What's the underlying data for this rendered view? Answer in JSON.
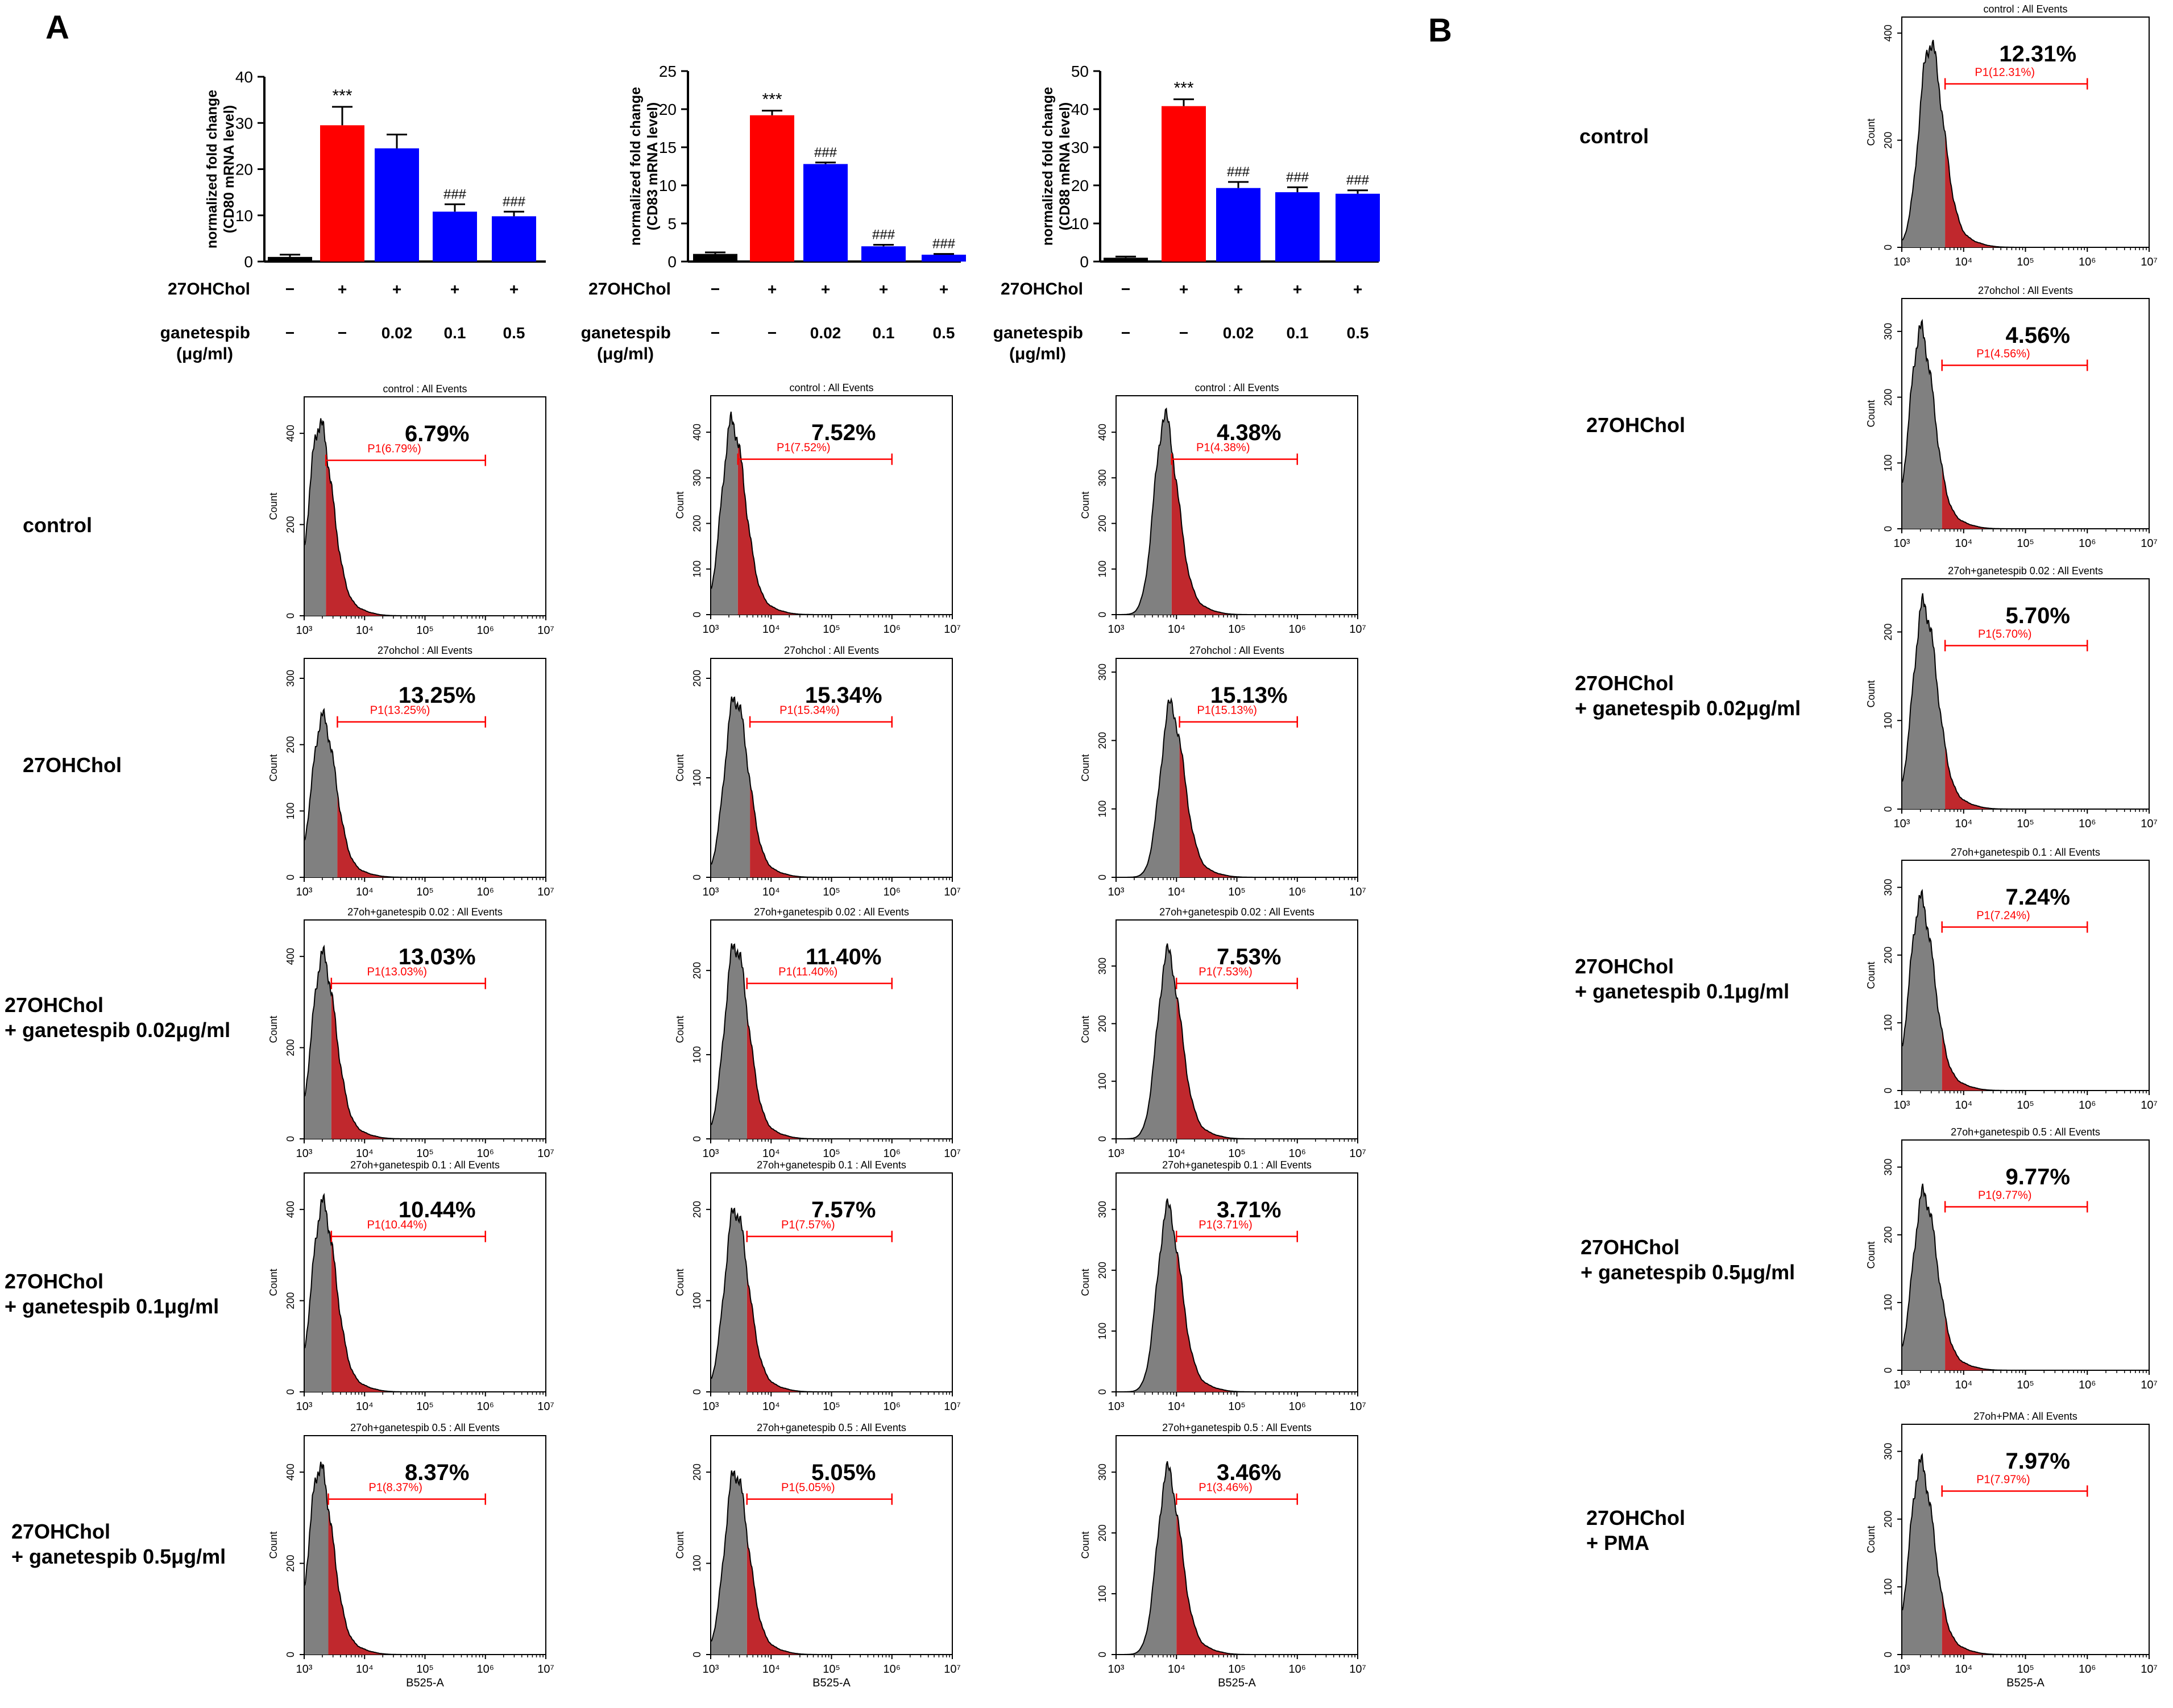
{
  "panel_letters": [
    "A",
    "B"
  ],
  "chart_data": [
    {
      "type": "bar",
      "id": "bar-cd80",
      "ylabel": "normalized fold change\n(CD80 mRNA level)",
      "ylim": [
        0,
        40
      ],
      "yticks": [
        0,
        10,
        20,
        30,
        40
      ],
      "values": [
        1,
        29.5,
        24.5,
        10.8,
        9.8
      ],
      "errors": [
        0.5,
        4,
        3,
        1.6,
        1
      ],
      "colors": [
        "#000000",
        "#ff0000",
        "#0000ff",
        "#0000ff",
        "#0000ff"
      ],
      "annotations": [
        "",
        "***",
        "",
        "###",
        "###"
      ],
      "row1_label": "27OHChol",
      "row1_values": [
        "−",
        "+",
        "+",
        "+",
        "+"
      ],
      "row2_label": "ganetespib",
      "row2_sublabel": "(μg/ml)",
      "row2_values": [
        "−",
        "−",
        "0.02",
        "0.1",
        "0.5"
      ]
    },
    {
      "type": "bar",
      "id": "bar-cd83",
      "ylabel": "normalized fold change\n(CD83 mRNA level)",
      "ylim": [
        0,
        25
      ],
      "yticks": [
        0,
        5,
        10,
        15,
        20,
        25
      ],
      "values": [
        1,
        19.2,
        12.8,
        2,
        0.9
      ],
      "errors": [
        0.2,
        0.6,
        0.2,
        0.2,
        0.1
      ],
      "colors": [
        "#000000",
        "#ff0000",
        "#0000ff",
        "#0000ff",
        "#0000ff"
      ],
      "annotations": [
        "",
        "***",
        "###",
        "###",
        "###"
      ],
      "row1_label": "27OHChol",
      "row1_values": [
        "−",
        "+",
        "+",
        "+",
        "+"
      ],
      "row2_label": "ganetespib",
      "row2_sublabel": "(μg/ml)",
      "row2_values": [
        "−",
        "−",
        "0.02",
        "0.1",
        "0.5"
      ]
    },
    {
      "type": "bar",
      "id": "bar-cd88",
      "ylabel": "normalized fold change\n(CD88 mRNA level)",
      "ylim": [
        0,
        50
      ],
      "yticks": [
        0,
        10,
        20,
        30,
        40,
        50
      ],
      "values": [
        1,
        40.8,
        19.3,
        18.2,
        17.8
      ],
      "errors": [
        0.3,
        1.8,
        1.6,
        1.3,
        0.9
      ],
      "colors": [
        "#000000",
        "#ff0000",
        "#0000ff",
        "#0000ff",
        "#0000ff"
      ],
      "annotations": [
        "",
        "***",
        "###",
        "###",
        "###"
      ],
      "row1_label": "27OHChol",
      "row1_values": [
        "−",
        "+",
        "+",
        "+",
        "+"
      ],
      "row2_label": "ganetespib",
      "row2_sublabel": "(μg/ml)",
      "row2_values": [
        "−",
        "−",
        "0.02",
        "0.1",
        "0.5"
      ]
    },
    {
      "type": "histogram",
      "id": "hist-a-c1-r1",
      "title": "control : All Events",
      "percent": "6.79%",
      "gate_label": "P1(6.79%)",
      "ylim": [
        0,
        480
      ],
      "yticks": [
        0,
        200,
        400
      ],
      "peak_log10": 3.25,
      "peak_count": 420,
      "gate_log10": 3.36,
      "gate_end_log10": 6,
      "ylabel": "Count",
      "xticks": [
        "10³",
        "10⁴",
        "10⁵",
        "10⁶",
        "10⁷"
      ]
    },
    {
      "type": "histogram",
      "id": "hist-a-c2-r1",
      "title": "control : All Events",
      "percent": "7.52%",
      "gate_label": "P1(7.52%)",
      "ylim": [
        0,
        480
      ],
      "yticks": [
        0,
        100,
        200,
        300,
        400
      ],
      "peak_log10": 3.35,
      "peak_count": 420,
      "gate_log10": 3.45,
      "gate_end_log10": 6,
      "ylabel": "Count",
      "xticks": [
        "10³",
        "10⁴",
        "10⁵",
        "10⁶",
        "10⁷"
      ]
    },
    {
      "type": "histogram",
      "id": "hist-a-c3-r1",
      "title": "control : All Events",
      "percent": "4.38%",
      "gate_label": "P1(4.38%)",
      "ylim": [
        0,
        480
      ],
      "yticks": [
        0,
        100,
        200,
        300,
        400
      ],
      "peak_log10": 3.8,
      "peak_count": 430,
      "gate_log10": 3.92,
      "gate_end_log10": 6,
      "ylabel": "Count",
      "xticks": [
        "10³",
        "10⁴",
        "10⁵",
        "10⁶",
        "10⁷"
      ]
    },
    {
      "type": "histogram",
      "id": "hist-a-c1-r2",
      "title": "27ohchol : All Events",
      "percent": "13.25%",
      "gate_label": "P1(13.25%)",
      "ylim": [
        0,
        330
      ],
      "yticks": [
        0,
        100,
        200,
        300
      ],
      "peak_log10": 3.3,
      "peak_count": 240,
      "gate_log10": 3.55,
      "gate_end_log10": 6,
      "ylabel": "Count",
      "xticks": [
        "10³",
        "10⁴",
        "10⁵",
        "10⁶",
        "10⁷"
      ]
    },
    {
      "type": "histogram",
      "id": "hist-a-c2-r2",
      "title": "27ohchol : All Events",
      "percent": "15.34%",
      "gate_label": "P1(15.34%)",
      "ylim": [
        0,
        220
      ],
      "yticks": [
        0,
        100,
        200
      ],
      "peak_log10": 3.4,
      "peak_count": 180,
      "gate_log10": 3.65,
      "gate_end_log10": 6,
      "ylabel": "Count",
      "xticks": [
        "10³",
        "10⁴",
        "10⁵",
        "10⁶",
        "10⁷"
      ]
    },
    {
      "type": "histogram",
      "id": "hist-a-c3-r2",
      "title": "27ohchol : All Events",
      "percent": "15.13%",
      "gate_label": "P1(15.13%)",
      "ylim": [
        0,
        320
      ],
      "yticks": [
        0,
        100,
        200,
        300
      ],
      "peak_log10": 3.9,
      "peak_count": 250,
      "gate_log10": 4.05,
      "gate_end_log10": 6,
      "ylabel": "Count",
      "xticks": [
        "10³",
        "10⁴",
        "10⁵",
        "10⁶",
        "10⁷"
      ]
    },
    {
      "type": "histogram",
      "id": "hist-a-c1-r3",
      "title": "27oh+ganetespib 0.02 : All Events",
      "percent": "13.03%",
      "gate_label": "P1(13.03%)",
      "ylim": [
        0,
        480
      ],
      "yticks": [
        0,
        200,
        400
      ],
      "peak_log10": 3.3,
      "peak_count": 400,
      "gate_log10": 3.45,
      "gate_end_log10": 6,
      "ylabel": "Count",
      "xticks": [
        "10³",
        "10⁴",
        "10⁵",
        "10⁶",
        "10⁷"
      ]
    },
    {
      "type": "histogram",
      "id": "hist-a-c2-r3",
      "title": "27oh+ganetespib 0.02 : All Events",
      "percent": "11.40%",
      "gate_label": "P1(11.40%)",
      "ylim": [
        0,
        260
      ],
      "yticks": [
        0,
        100,
        200
      ],
      "peak_log10": 3.4,
      "peak_count": 230,
      "gate_log10": 3.6,
      "gate_end_log10": 6,
      "ylabel": "Count",
      "xticks": [
        "10³",
        "10⁴",
        "10⁵",
        "10⁶",
        "10⁷"
      ]
    },
    {
      "type": "histogram",
      "id": "hist-a-c3-r3",
      "title": "27oh+ganetespib 0.02 : All Events",
      "percent": "7.53%",
      "gate_label": "P1(7.53%)",
      "ylim": [
        0,
        380
      ],
      "yticks": [
        0,
        100,
        200,
        300
      ],
      "peak_log10": 3.85,
      "peak_count": 320,
      "gate_log10": 4,
      "gate_end_log10": 6,
      "ylabel": "Count",
      "xticks": [
        "10³",
        "10⁴",
        "10⁵",
        "10⁶",
        "10⁷"
      ]
    },
    {
      "type": "histogram",
      "id": "hist-a-c1-r4",
      "title": "27oh+ganetespib 0.1 : All Events",
      "percent": "10.44%",
      "gate_label": "P1(10.44%)",
      "ylim": [
        0,
        480
      ],
      "yticks": [
        0,
        200,
        400
      ],
      "peak_log10": 3.3,
      "peak_count": 410,
      "gate_log10": 3.45,
      "gate_end_log10": 6,
      "ylabel": "Count",
      "xticks": [
        "10³",
        "10⁴",
        "10⁵",
        "10⁶",
        "10⁷"
      ]
    },
    {
      "type": "histogram",
      "id": "hist-a-c2-r4",
      "title": "27oh+ganetespib 0.1 : All Events",
      "percent": "7.57%",
      "gate_label": "P1(7.57%)",
      "ylim": [
        0,
        240
      ],
      "yticks": [
        0,
        100,
        200
      ],
      "peak_log10": 3.4,
      "peak_count": 200,
      "gate_log10": 3.6,
      "gate_end_log10": 6,
      "ylabel": "Count",
      "xticks": [
        "10³",
        "10⁴",
        "10⁵",
        "10⁶",
        "10⁷"
      ]
    },
    {
      "type": "histogram",
      "id": "hist-a-c3-r4",
      "title": "27oh+ganetespib 0.1 : All Events",
      "percent": "3.71%",
      "gate_label": "P1(3.71%)",
      "ylim": [
        0,
        360
      ],
      "yticks": [
        0,
        100,
        200,
        300
      ],
      "peak_log10": 3.85,
      "peak_count": 300,
      "gate_log10": 4,
      "gate_end_log10": 6,
      "ylabel": "Count",
      "xticks": [
        "10³",
        "10⁴",
        "10⁵",
        "10⁶",
        "10⁷"
      ]
    },
    {
      "type": "histogram",
      "id": "hist-a-c1-r5",
      "title": "27oh+ganetespib 0.5 : All Events",
      "percent": "8.37%",
      "gate_label": "P1(8.37%)",
      "ylim": [
        0,
        480
      ],
      "yticks": [
        0,
        200,
        400
      ],
      "peak_log10": 3.25,
      "peak_count": 410,
      "gate_log10": 3.4,
      "gate_end_log10": 6,
      "ylabel": "Count",
      "xticks": [
        "10³",
        "10⁴",
        "10⁵",
        "10⁶",
        "10⁷"
      ],
      "xlabel": "B525-A"
    },
    {
      "type": "histogram",
      "id": "hist-a-c2-r5",
      "title": "27oh+ganetespib 0.5 : All Events",
      "percent": "5.05%",
      "gate_label": "P1(5.05%)",
      "ylim": [
        0,
        240
      ],
      "yticks": [
        0,
        100,
        200
      ],
      "peak_log10": 3.4,
      "peak_count": 200,
      "gate_log10": 3.6,
      "gate_end_log10": 6,
      "ylabel": "Count",
      "xticks": [
        "10³",
        "10⁴",
        "10⁵",
        "10⁶",
        "10⁷"
      ],
      "xlabel": "B525-A"
    },
    {
      "type": "histogram",
      "id": "hist-a-c3-r5",
      "title": "27oh+ganetespib 0.5 : All Events",
      "percent": "3.46%",
      "gate_label": "P1(3.46%)",
      "ylim": [
        0,
        360
      ],
      "yticks": [
        0,
        100,
        200,
        300
      ],
      "peak_log10": 3.85,
      "peak_count": 300,
      "gate_log10": 4,
      "gate_end_log10": 6,
      "ylabel": "Count",
      "xticks": [
        "10³",
        "10⁴",
        "10⁵",
        "10⁶",
        "10⁷"
      ],
      "xlabel": "B525-A"
    },
    {
      "type": "histogram",
      "id": "hist-b-r1",
      "title": "control : All Events",
      "percent": "12.31%",
      "gate_label": "P1(12.31%)",
      "ylim": [
        0,
        430
      ],
      "yticks": [
        0,
        200,
        400
      ],
      "peak_log10": 3.45,
      "peak_count": 380,
      "gate_log10": 3.7,
      "gate_end_log10": 6,
      "ylabel": "Count",
      "xticks": [
        "10³",
        "10⁴",
        "10⁵",
        "10⁶",
        "10⁷"
      ]
    },
    {
      "type": "histogram",
      "id": "hist-b-r2",
      "title": "27ohchol : All Events",
      "percent": "4.56%",
      "gate_label": "P1(4.56%)",
      "ylim": [
        0,
        350
      ],
      "yticks": [
        0,
        100,
        200,
        300
      ],
      "peak_log10": 3.3,
      "peak_count": 300,
      "gate_log10": 3.65,
      "gate_end_log10": 6,
      "ylabel": "Count",
      "xticks": [
        "10³",
        "10⁴",
        "10⁵",
        "10⁶",
        "10⁷"
      ]
    },
    {
      "type": "histogram",
      "id": "hist-b-r3",
      "title": "27oh+ganetespib 0.02 : All Events",
      "percent": "5.70%",
      "gate_label": "P1(5.70%)",
      "ylim": [
        0,
        260
      ],
      "yticks": [
        0,
        100,
        200
      ],
      "peak_log10": 3.35,
      "peak_count": 230,
      "gate_log10": 3.7,
      "gate_end_log10": 6,
      "ylabel": "Count",
      "xticks": [
        "10³",
        "10⁴",
        "10⁵",
        "10⁶",
        "10⁷"
      ]
    },
    {
      "type": "histogram",
      "id": "hist-b-r4",
      "title": "27oh+ganetespib 0.1 : All Events",
      "percent": "7.24%",
      "gate_label": "P1(7.24%)",
      "ylim": [
        0,
        340
      ],
      "yticks": [
        0,
        100,
        200,
        300
      ],
      "peak_log10": 3.3,
      "peak_count": 280,
      "gate_log10": 3.65,
      "gate_end_log10": 6,
      "ylabel": "Count",
      "xticks": [
        "10³",
        "10⁴",
        "10⁵",
        "10⁶",
        "10⁷"
      ]
    },
    {
      "type": "histogram",
      "id": "hist-b-r5",
      "title": "27oh+ganetespib 0.5 : All Events",
      "percent": "9.77%",
      "gate_label": "P1(9.77%)",
      "ylim": [
        0,
        340
      ],
      "yticks": [
        0,
        100,
        200,
        300
      ],
      "peak_log10": 3.35,
      "peak_count": 260,
      "gate_log10": 3.7,
      "gate_end_log10": 6,
      "ylabel": "Count",
      "xticks": [
        "10³",
        "10⁴",
        "10⁵",
        "10⁶",
        "10⁷"
      ]
    },
    {
      "type": "histogram",
      "id": "hist-b-r6",
      "title": "27oh+PMA : All Events",
      "percent": "7.97%",
      "gate_label": "P1(7.97%)",
      "ylim": [
        0,
        340
      ],
      "yticks": [
        0,
        100,
        200,
        300
      ],
      "peak_log10": 3.3,
      "peak_count": 280,
      "gate_log10": 3.65,
      "gate_end_log10": 6,
      "ylabel": "Count",
      "xticks": [
        "10³",
        "10⁴",
        "10⁵",
        "10⁶",
        "10⁷"
      ],
      "xlabel": "B525-A"
    }
  ],
  "row_labels_a": [
    "control",
    "27OHChol",
    "27OHChol\n+ ganetespib 0.02μg/ml",
    "27OHChol\n+ ganetespib 0.1μg/ml",
    "27OHChol\n+ ganetespib 0.5μg/ml"
  ],
  "row_labels_b": [
    "control",
    "27OHChol",
    "27OHChol\n+ ganetespib 0.02μg/ml",
    "27OHChol\n+ ganetespib 0.1μg/ml",
    "27OHChol\n+ ganetespib 0.5μg/ml",
    "27OHChol\n+ PMA"
  ]
}
